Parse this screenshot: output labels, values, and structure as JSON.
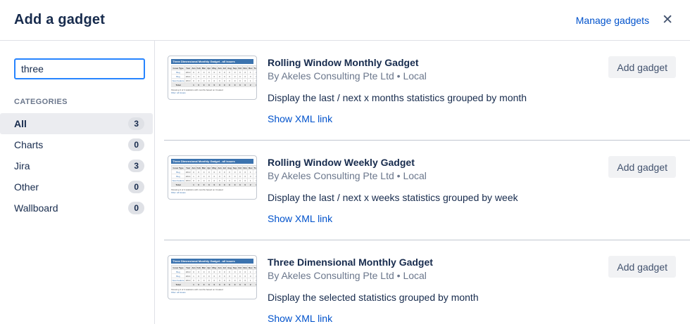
{
  "header": {
    "title": "Add a gadget",
    "manage_link": "Manage gadgets",
    "close_glyph": "✕"
  },
  "sidebar": {
    "search": {
      "value": "three",
      "placeholder": ""
    },
    "categories_label": "CATEGORIES",
    "categories": [
      {
        "label": "All",
        "count": "3",
        "selected": true
      },
      {
        "label": "Charts",
        "count": "0",
        "selected": false
      },
      {
        "label": "Jira",
        "count": "3",
        "selected": false
      },
      {
        "label": "Other",
        "count": "0",
        "selected": false
      },
      {
        "label": "Wallboard",
        "count": "0",
        "selected": false
      }
    ]
  },
  "labels": {
    "add_gadget": "Add gadget",
    "show_xml": "Show XML link"
  },
  "gadgets": [
    {
      "title": "Rolling Window Monthly Gadget",
      "byline": "By Akeles Consulting Pte Ltd • Local",
      "description": "Display the last / next x months statistics grouped by month"
    },
    {
      "title": "Rolling Window Weekly Gadget",
      "byline": "By Akeles Consulting Pte Ltd • Local",
      "description": "Display the last / next x weeks statistics grouped by week"
    },
    {
      "title": "Three Dimensional Monthly Gadget",
      "byline": "By Akeles Consulting Pte Ltd • Local",
      "description": "Display the selected statistics grouped by month"
    }
  ],
  "thumbnail": {
    "titlebar": "Three Dimensional Monthly Gadget - all issues",
    "columns": [
      "Issue Type",
      "Year",
      "Jan",
      "Feb",
      "Mar",
      "Apr",
      "May",
      "Jun",
      "Jul",
      "Aug",
      "Sep",
      "Oct",
      "Nov",
      "Dec",
      "Total"
    ],
    "rows": [
      [
        "Bug",
        "2013",
        "0",
        "0",
        "0",
        "0",
        "0",
        "0",
        "0",
        "0",
        "0",
        "0",
        "0",
        "1",
        "1"
      ],
      [
        "Bug",
        "2014",
        "1",
        "0",
        "0",
        "0",
        "0",
        "0",
        "0",
        "0",
        "0",
        "0",
        "0",
        "0",
        "1"
      ],
      [
        "New Feature",
        "2013",
        "0",
        "0",
        "0",
        "0",
        "0",
        "0",
        "0",
        "0",
        "0",
        "0",
        "0",
        "1",
        "1"
      ],
      [
        "Total",
        "",
        "1",
        "0",
        "0",
        "0",
        "0",
        "0",
        "0",
        "0",
        "0",
        "0",
        "0",
        "2",
        "3"
      ]
    ],
    "footer": "Showing 3 of 3 statistics with months based on Created",
    "filter": "Filter: all issues"
  },
  "colors": {
    "accent_blue": "#0052CC",
    "focus_border": "#2684FF",
    "text_dark": "#172B4D",
    "text_gray": "#6B778C",
    "selected_bg": "#EBECF0",
    "badge_bg": "#DFE1E6",
    "divider": "#C1C7D0",
    "thumb_header_blue": "#3B73AF",
    "button_bg": "#F1F2F4"
  }
}
